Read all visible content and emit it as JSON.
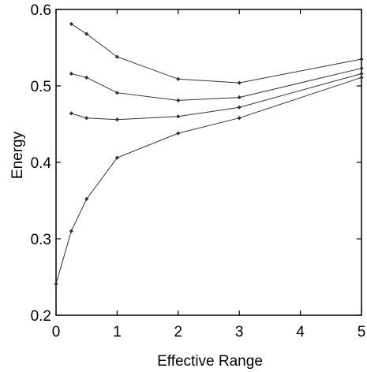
{
  "chart_data": {
    "type": "line",
    "title": "",
    "xlabel": "Effective Range",
    "ylabel": "Energy",
    "xlim": [
      0,
      5
    ],
    "ylim": [
      0.2,
      0.6
    ],
    "xticks": [
      0,
      1,
      2,
      3,
      4,
      5
    ],
    "xtick_labels": [
      "0",
      "1",
      "2",
      "3",
      "4",
      "5"
    ],
    "yticks": [
      0.2,
      0.3,
      0.4,
      0.5,
      0.6
    ],
    "ytick_labels": [
      "0.2",
      "0.3",
      "0.4",
      "0.5",
      "0.6"
    ],
    "grid": false,
    "line_color": "#333333",
    "marker": "diamond",
    "series": [
      {
        "x": [
          0.25,
          0.5,
          1,
          2,
          3,
          5
        ],
        "y": [
          0.581,
          0.568,
          0.538,
          0.509,
          0.504,
          0.535
        ]
      },
      {
        "x": [
          0.25,
          0.5,
          1,
          2,
          3,
          5
        ],
        "y": [
          0.516,
          0.511,
          0.491,
          0.481,
          0.485,
          0.523
        ]
      },
      {
        "x": [
          0.25,
          0.5,
          1,
          2,
          3,
          5
        ],
        "y": [
          0.464,
          0.458,
          0.456,
          0.46,
          0.472,
          0.516
        ]
      },
      {
        "x": [
          0,
          0.25,
          0.5,
          1,
          2,
          3,
          5
        ],
        "y": [
          0.241,
          0.31,
          0.352,
          0.406,
          0.438,
          0.458,
          0.511
        ]
      }
    ]
  }
}
